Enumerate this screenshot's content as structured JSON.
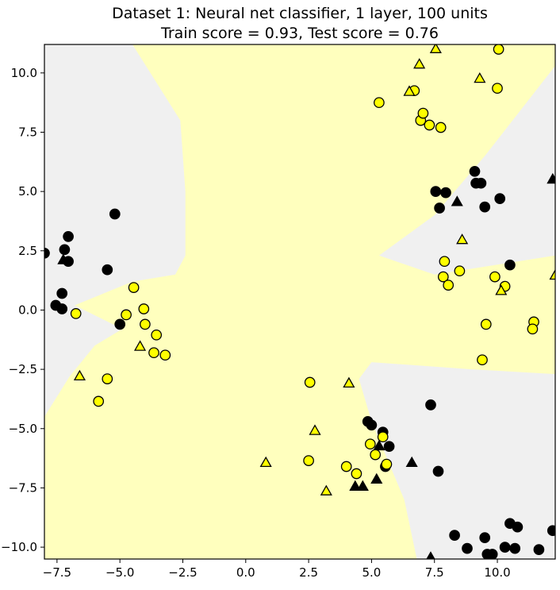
{
  "chart_data": {
    "type": "scatter",
    "title_line1": "Dataset 1: Neural net classifier, 1 layer, 100 units",
    "title_line2": "Train score = 0.93, Test score = 0.76",
    "xlabel": "",
    "ylabel": "",
    "xlim": [
      -8.0,
      12.3
    ],
    "ylim": [
      -10.5,
      11.2
    ],
    "grid": false,
    "x_ticks": [
      -7.5,
      -5.0,
      -2.5,
      0.0,
      2.5,
      5.0,
      7.5,
      10.0
    ],
    "x_tick_labels": [
      "−7.5",
      "−5.0",
      "−2.5",
      "0.0",
      "2.5",
      "5.0",
      "7.5",
      "10.0"
    ],
    "y_ticks": [
      10.0,
      7.5,
      5.0,
      2.5,
      0.0,
      -2.5,
      -5.0,
      -7.5,
      -10.0
    ],
    "y_tick_labels": [
      "10.0",
      "7.5",
      "5.0",
      "2.5",
      "0.0",
      "−2.5",
      "−5.0",
      "−7.5",
      "−10.0"
    ],
    "colors": {
      "class0": "#000000",
      "class1": "#ffff00",
      "region0": "#f0f0f0",
      "region1": "#ffffbe",
      "edge": "#000000"
    },
    "decision_regions": {
      "background_class": 1,
      "class0_regions": [
        [
          [
            -8.0,
            11.2
          ],
          [
            -4.5,
            11.2
          ],
          [
            -2.6,
            8.0
          ],
          [
            -2.4,
            5.0
          ],
          [
            -2.4,
            2.3
          ],
          [
            -2.8,
            1.5
          ],
          [
            -4.5,
            1.2
          ],
          [
            -6.8,
            0.2
          ],
          [
            -4.9,
            -0.8
          ],
          [
            -6.0,
            -1.5
          ],
          [
            -7.0,
            -2.8
          ],
          [
            -8.0,
            -4.5
          ]
        ],
        [
          [
            5.3,
            2.3
          ],
          [
            7.5,
            4.0
          ],
          [
            9.5,
            6.5
          ],
          [
            12.3,
            10.3
          ],
          [
            12.3,
            2.3
          ],
          [
            7.5,
            1.5
          ]
        ],
        [
          [
            12.3,
            -1.5
          ],
          [
            12.3,
            -2.7
          ],
          [
            9.0,
            -2.5
          ],
          [
            5.0,
            -2.2
          ],
          [
            4.5,
            -2.9
          ],
          [
            5.0,
            -4.7
          ],
          [
            6.3,
            -8.0
          ],
          [
            6.8,
            -10.5
          ],
          [
            12.3,
            -10.5
          ]
        ]
      ]
    },
    "series": [
      {
        "label": 0,
        "train": [
          [
            -8.0,
            2.4
          ],
          [
            -7.2,
            2.55
          ],
          [
            -7.05,
            3.1
          ],
          [
            -7.05,
            2.05
          ],
          [
            -7.3,
            0.7
          ],
          [
            -7.55,
            0.2
          ],
          [
            -7.3,
            0.05
          ],
          [
            -5.5,
            1.7
          ],
          [
            -5.2,
            4.05
          ],
          [
            -5.0,
            -0.6
          ],
          [
            7.55,
            5.0
          ],
          [
            7.95,
            4.95
          ],
          [
            7.7,
            4.3
          ],
          [
            9.1,
            5.85
          ],
          [
            9.15,
            5.35
          ],
          [
            9.35,
            5.35
          ],
          [
            9.5,
            4.35
          ],
          [
            10.1,
            4.7
          ],
          [
            10.5,
            1.9
          ],
          [
            4.85,
            -4.7
          ],
          [
            5.0,
            -4.85
          ],
          [
            5.45,
            -5.15
          ],
          [
            5.7,
            -5.75
          ],
          [
            5.55,
            -6.6
          ],
          [
            7.35,
            -4.0
          ],
          [
            7.65,
            -6.8
          ],
          [
            8.3,
            -9.5
          ],
          [
            8.8,
            -10.05
          ],
          [
            9.5,
            -9.6
          ],
          [
            9.6,
            -10.3
          ],
          [
            9.8,
            -10.3
          ],
          [
            10.3,
            -10.0
          ],
          [
            10.5,
            -9.0
          ],
          [
            10.7,
            -10.05
          ],
          [
            10.8,
            -9.15
          ],
          [
            11.65,
            -10.1
          ],
          [
            12.2,
            -9.3
          ]
        ],
        "test": [
          [
            -7.25,
            2.1
          ],
          [
            8.4,
            4.55
          ],
          [
            12.2,
            5.5
          ],
          [
            5.3,
            -5.75
          ],
          [
            4.35,
            -7.45
          ],
          [
            4.65,
            -7.45
          ],
          [
            5.2,
            -7.15
          ],
          [
            6.6,
            -6.45
          ],
          [
            7.35,
            -10.45
          ]
        ]
      },
      {
        "label": 1,
        "train": [
          [
            -6.75,
            -0.15
          ],
          [
            -4.75,
            -0.2
          ],
          [
            -4.45,
            0.95
          ],
          [
            -4.05,
            0.05
          ],
          [
            -4.0,
            -0.6
          ],
          [
            -3.55,
            -1.05
          ],
          [
            -3.65,
            -1.8
          ],
          [
            -3.2,
            -1.9
          ],
          [
            -5.5,
            -2.9
          ],
          [
            -5.85,
            -3.85
          ],
          [
            5.3,
            8.75
          ],
          [
            6.7,
            9.25
          ],
          [
            6.95,
            8.0
          ],
          [
            7.05,
            8.3
          ],
          [
            7.3,
            7.8
          ],
          [
            7.75,
            7.7
          ],
          [
            10.05,
            11.0
          ],
          [
            10.0,
            9.35
          ],
          [
            7.9,
            2.05
          ],
          [
            7.85,
            1.4
          ],
          [
            8.05,
            1.05
          ],
          [
            8.5,
            1.65
          ],
          [
            9.9,
            1.4
          ],
          [
            10.3,
            1.0
          ],
          [
            9.55,
            -0.6
          ],
          [
            11.45,
            -0.5
          ],
          [
            11.4,
            -0.8
          ],
          [
            9.4,
            -2.1
          ],
          [
            2.55,
            -3.05
          ],
          [
            2.5,
            -6.35
          ],
          [
            4.0,
            -6.6
          ],
          [
            4.4,
            -6.9
          ],
          [
            4.95,
            -5.65
          ],
          [
            5.15,
            -6.1
          ],
          [
            5.45,
            -5.35
          ],
          [
            5.6,
            -6.5
          ]
        ],
        "test": [
          [
            -6.6,
            -2.8
          ],
          [
            -4.2,
            -1.55
          ],
          [
            6.5,
            9.2
          ],
          [
            6.9,
            10.35
          ],
          [
            7.55,
            11.0
          ],
          [
            9.3,
            9.75
          ],
          [
            8.6,
            2.95
          ],
          [
            10.15,
            0.8
          ],
          [
            12.3,
            1.45
          ],
          [
            0.8,
            -6.45
          ],
          [
            2.75,
            -5.1
          ],
          [
            3.2,
            -7.65
          ],
          [
            4.1,
            -3.1
          ]
        ]
      }
    ]
  }
}
